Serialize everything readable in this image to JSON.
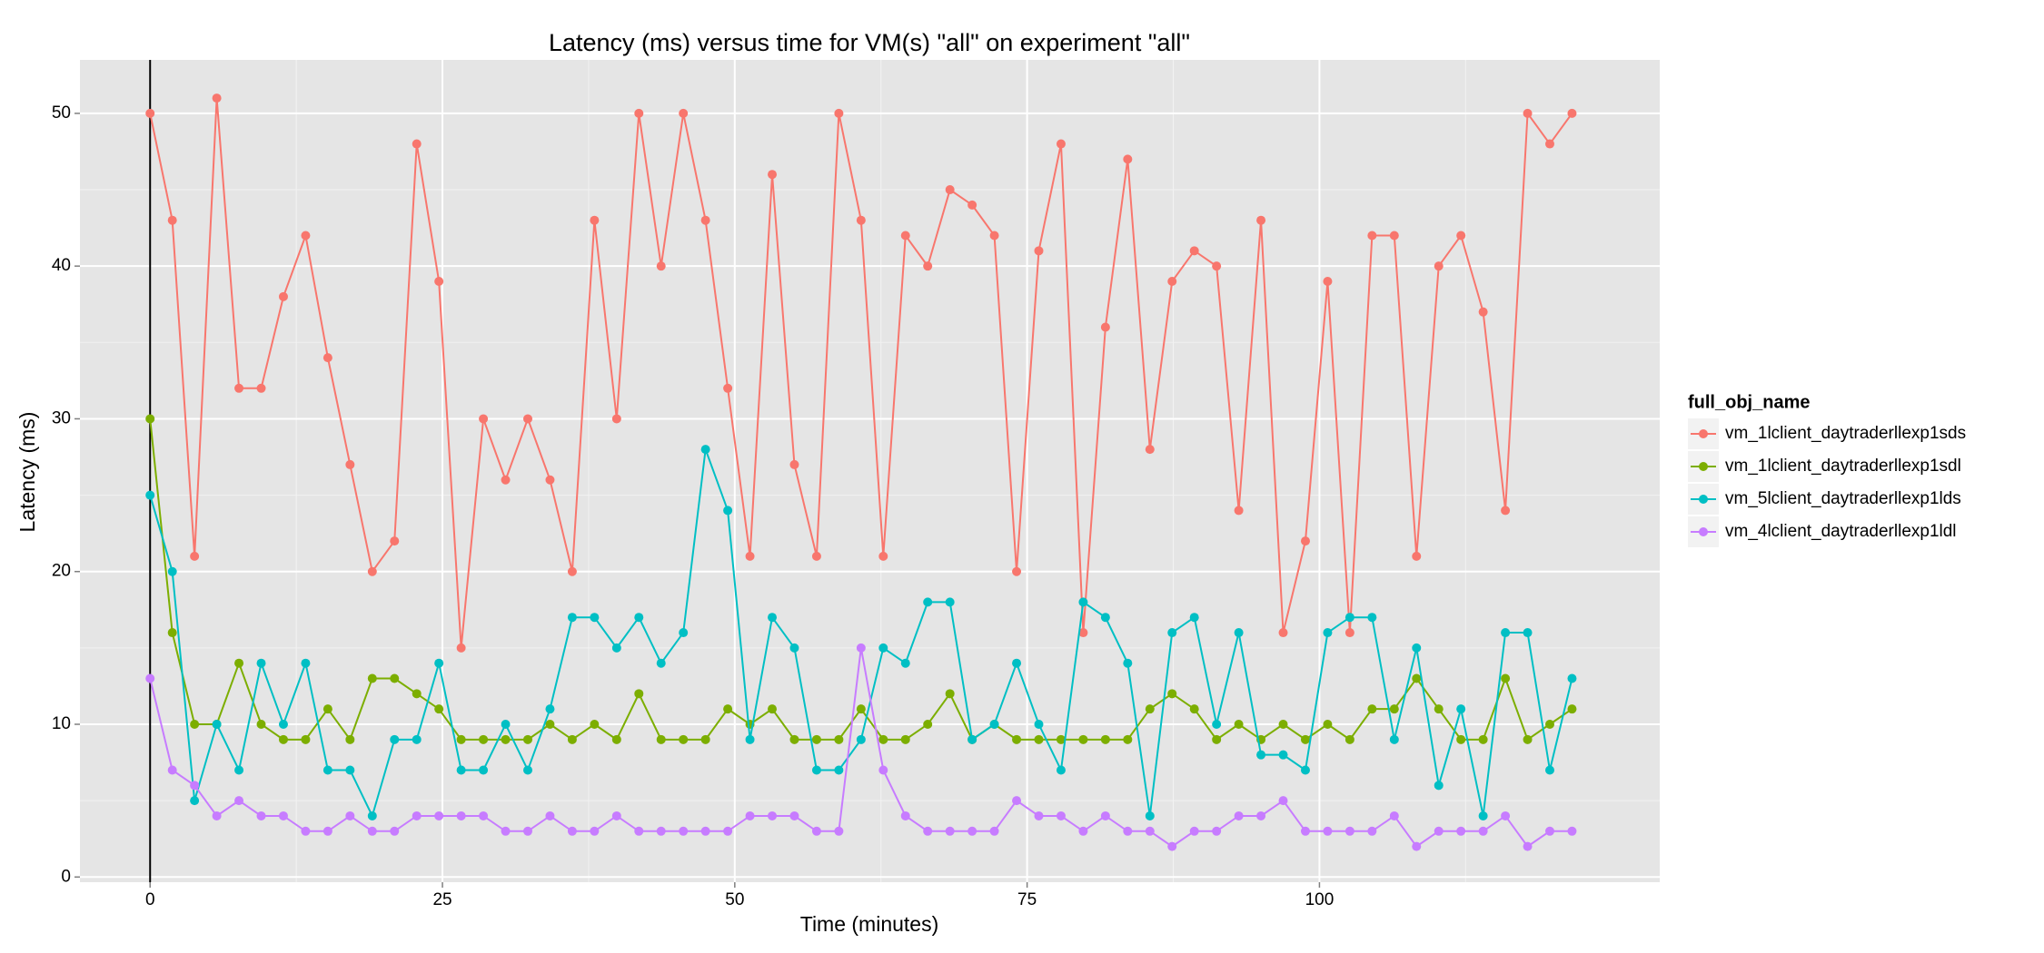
{
  "chart_data": {
    "type": "line",
    "title": "Latency (ms) versus time for VM(s) \"all\" on experiment \"all\"",
    "x_label": "Time (minutes)",
    "y_label": "Latency (ms)",
    "legend_title": "full_obj_name",
    "legend_position": "right",
    "grid": true,
    "vline": 0,
    "x": [
      0,
      1.9,
      3.8,
      5.7,
      7.6,
      9.5,
      11.4,
      13.3,
      15.2,
      17.1,
      19,
      20.9,
      22.8,
      24.7,
      26.6,
      28.5,
      30.4,
      32.3,
      34.2,
      36.1,
      38,
      39.9,
      41.8,
      43.7,
      45.6,
      47.5,
      49.4,
      51.3,
      53.2,
      55.1,
      57,
      58.9,
      60.8,
      62.7,
      64.6,
      66.5,
      68.4,
      70.3,
      72.2,
      74.1,
      76,
      77.9,
      79.8,
      81.7,
      83.6,
      85.5,
      87.4,
      89.3,
      91.2,
      93.1,
      95,
      96.9,
      98.8,
      100.7,
      102.6,
      104.5,
      106.4,
      108.3,
      110.2,
      112.1,
      114,
      115.9,
      117.8,
      119.7,
      121.6
    ],
    "xlim": [
      -6,
      129.1
    ],
    "xticks": [
      0,
      25,
      50,
      75,
      100
    ],
    "ylim": [
      -0.34,
      53.5
    ],
    "yticks": [
      0,
      10,
      20,
      30,
      40,
      50
    ],
    "series": [
      {
        "name": "vm_1lclient_daytraderllexp1sds",
        "color": "#F8766D",
        "values": [
          50,
          43,
          21,
          51,
          32,
          32,
          38,
          42,
          34,
          27,
          20,
          22,
          48,
          39,
          15,
          30,
          26,
          30,
          26,
          20,
          43,
          30,
          50,
          40,
          50,
          43,
          32,
          21,
          46,
          27,
          21,
          50,
          43,
          21,
          42,
          40,
          45,
          44,
          42,
          20,
          41,
          48,
          16,
          36,
          47,
          28,
          39,
          41,
          40,
          24,
          43,
          16,
          22,
          39,
          16,
          42,
          42,
          21,
          40,
          42,
          37,
          24,
          50,
          48,
          50
        ]
      },
      {
        "name": "vm_1lclient_daytraderllexp1sdl",
        "color": "#7CAE00",
        "values": [
          30,
          16,
          10,
          10,
          14,
          10,
          9,
          9,
          11,
          9,
          13,
          13,
          12,
          11,
          9,
          9,
          9,
          9,
          10,
          9,
          10,
          9,
          12,
          9,
          9,
          9,
          11,
          10,
          11,
          9,
          9,
          9,
          11,
          9,
          9,
          10,
          12,
          9,
          10,
          9,
          9,
          9,
          9,
          9,
          9,
          11,
          12,
          11,
          9,
          10,
          9,
          10,
          9,
          10,
          9,
          11,
          11,
          13,
          11,
          9,
          9,
          13,
          9,
          10,
          11
        ]
      },
      {
        "name": "vm_5lclient_daytraderllexp1lds",
        "color": "#00BFC4",
        "values": [
          25,
          20,
          5,
          10,
          7,
          14,
          10,
          14,
          7,
          7,
          4,
          9,
          9,
          14,
          7,
          7,
          10,
          7,
          11,
          17,
          17,
          15,
          17,
          14,
          16,
          28,
          24,
          9,
          17,
          15,
          7,
          7,
          9,
          15,
          14,
          18,
          18,
          9,
          10,
          14,
          10,
          7,
          18,
          17,
          14,
          4,
          16,
          17,
          10,
          16,
          8,
          8,
          7,
          16,
          17,
          17,
          9,
          15,
          6,
          11,
          4,
          16,
          16,
          7,
          13
        ]
      },
      {
        "name": "vm_4lclient_daytraderllexp1ldl",
        "color": "#C77CFF",
        "values": [
          13,
          7,
          6,
          4,
          5,
          4,
          4,
          3,
          3,
          4,
          3,
          3,
          4,
          4,
          4,
          4,
          3,
          3,
          4,
          3,
          3,
          4,
          3,
          3,
          3,
          3,
          3,
          4,
          4,
          4,
          3,
          3,
          15,
          7,
          4,
          3,
          3,
          3,
          3,
          5,
          4,
          4,
          3,
          4,
          3,
          3,
          2,
          3,
          3,
          4,
          4,
          5,
          3,
          3,
          3,
          3,
          4,
          2,
          3,
          3,
          3,
          4,
          2,
          3,
          3
        ]
      }
    ]
  }
}
